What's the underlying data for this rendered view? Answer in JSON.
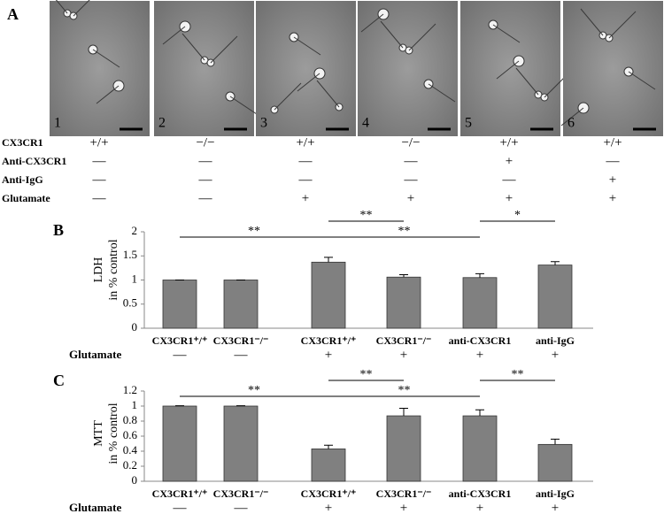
{
  "panel_a": {
    "letter": "A",
    "images": [
      "1",
      "2",
      "3",
      "4",
      "5",
      "6"
    ],
    "rows": [
      {
        "label": "CX3CR1",
        "cells": [
          "+/+",
          "−/−",
          "+/+",
          "−/−",
          "+/+",
          "+/+"
        ]
      },
      {
        "label": "Anti-CX3CR1",
        "cells": [
          "—",
          "—",
          "—",
          "—",
          "+",
          "—"
        ]
      },
      {
        "label": "Anti-IgG",
        "cells": [
          "—",
          "—",
          "—",
          "—",
          "—",
          "+"
        ]
      },
      {
        "label": "Glutamate",
        "cells": [
          "—",
          "—",
          "+",
          "+",
          "+",
          "+"
        ]
      }
    ]
  },
  "chart_data": [
    {
      "type": "bar",
      "panel": "B",
      "ylabel": [
        "LDH",
        "in % control"
      ],
      "categories": [
        "CX3CR1⁺/⁺",
        "CX3CR1⁻/⁻",
        "CX3CR1⁺/⁺",
        "CX3CR1⁻/⁻",
        "anti-CX3CR1",
        "anti-IgG"
      ],
      "values": [
        1,
        1,
        1.37,
        1.06,
        1.05,
        1.31
      ],
      "errors": [
        0,
        0,
        0.1,
        0.05,
        0.08,
        0.07
      ],
      "color": "#808080",
      "ylim": [
        0,
        2
      ],
      "yticks": [
        0,
        0.5,
        1,
        1.5,
        2
      ],
      "treatment": {
        "label": "Glutamate",
        "cells": [
          "—",
          "—",
          "+",
          "+",
          "+",
          "+"
        ]
      },
      "annotations": [
        {
          "text": "**",
          "from": 0,
          "to": 2
        },
        {
          "text": "**",
          "from": 2,
          "to": 3
        },
        {
          "text": "**",
          "from": 2,
          "to": 4
        },
        {
          "text": "*",
          "from": 4,
          "to": 5
        }
      ]
    },
    {
      "type": "bar",
      "panel": "C",
      "ylabel": [
        "MTT",
        "in % control"
      ],
      "categories": [
        "CX3CR1⁺/⁺",
        "CX3CR1⁻/⁻",
        "CX3CR1⁺/⁺",
        "CX3CR1⁻/⁻",
        "anti-CX3CR1",
        "anti-IgG"
      ],
      "values": [
        1,
        1,
        0.43,
        0.87,
        0.87,
        0.49
      ],
      "errors": [
        0.005,
        0.005,
        0.05,
        0.1,
        0.08,
        0.07
      ],
      "color": "#808080",
      "ylim": [
        0,
        1.2
      ],
      "yticks": [
        0,
        0.2,
        0.4,
        0.6,
        0.8,
        1,
        1.2
      ],
      "treatment": {
        "label": "Glutamate",
        "cells": [
          "—",
          "—",
          "+",
          "+",
          "+",
          "+"
        ]
      },
      "annotations": [
        {
          "text": "**",
          "from": 0,
          "to": 2
        },
        {
          "text": "**",
          "from": 2,
          "to": 3
        },
        {
          "text": "**",
          "from": 2,
          "to": 4
        },
        {
          "text": "**",
          "from": 4,
          "to": 5
        }
      ]
    }
  ]
}
